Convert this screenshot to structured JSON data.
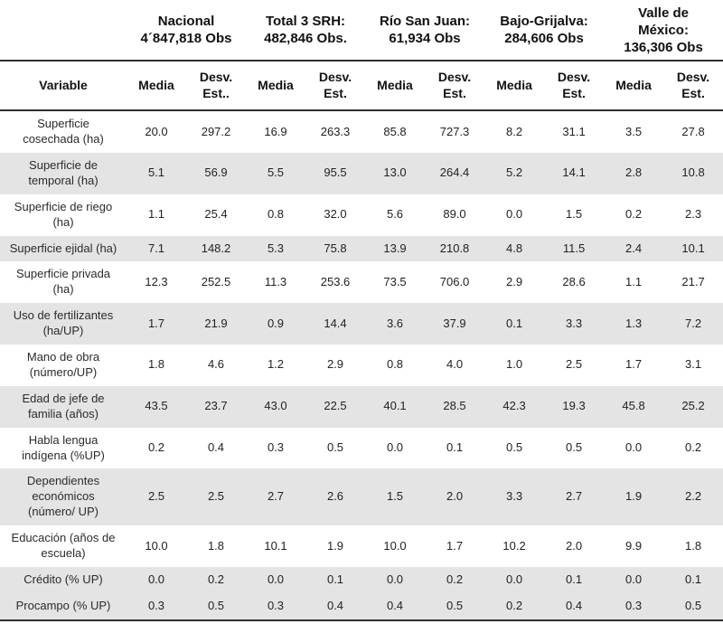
{
  "table": {
    "variable_header": "Variable",
    "groups": [
      {
        "name": "Nacional",
        "obs": "4´847,818 Obs",
        "media_label": "Media",
        "desv_label": "Desv. Est.."
      },
      {
        "name": "Total 3 SRH:",
        "obs": "482,846 Obs.",
        "media_label": "Media",
        "desv_label": "Desv. Est."
      },
      {
        "name": "Río San Juan:",
        "obs": "61,934 Obs",
        "media_label": "Media",
        "desv_label": "Desv. Est."
      },
      {
        "name": "Bajo-Grijalva:",
        "obs": "284,606 Obs",
        "media_label": "Media",
        "desv_label": "Desv. Est."
      },
      {
        "name": "Valle de México:",
        "obs": "136,306 Obs",
        "media_label": "Media",
        "desv_label": "Desv. Est."
      }
    ],
    "rows": [
      {
        "label": "Superficie cosechada (ha)",
        "shaded": false,
        "values": [
          "20.0",
          "297.2",
          "16.9",
          "263.3",
          "85.8",
          "727.3",
          "8.2",
          "31.1",
          "3.5",
          "27.8"
        ]
      },
      {
        "label": "Superficie de temporal (ha)",
        "shaded": true,
        "values": [
          "5.1",
          "56.9",
          "5.5",
          "95.5",
          "13.0",
          "264.4",
          "5.2",
          "14.1",
          "2.8",
          "10.8"
        ]
      },
      {
        "label": "Superficie de riego (ha)",
        "shaded": false,
        "values": [
          "1.1",
          "25.4",
          "0.8",
          "32.0",
          "5.6",
          "89.0",
          "0.0",
          "1.5",
          "0.2",
          "2.3"
        ]
      },
      {
        "label": "Superficie ejidal (ha)",
        "shaded": true,
        "values": [
          "7.1",
          "148.2",
          "5.3",
          "75.8",
          "13.9",
          "210.8",
          "4.8",
          "11.5",
          "2.4",
          "10.1"
        ]
      },
      {
        "label": "Superficie privada (ha)",
        "shaded": false,
        "values": [
          "12.3",
          "252.5",
          "11.3",
          "253.6",
          "73.5",
          "706.0",
          "2.9",
          "28.6",
          "1.1",
          "21.7"
        ]
      },
      {
        "label": "Uso de fertilizantes (ha/UP)",
        "shaded": true,
        "values": [
          "1.7",
          "21.9",
          "0.9",
          "14.4",
          "3.6",
          "37.9",
          "0.1",
          "3.3",
          "1.3",
          "7.2"
        ]
      },
      {
        "label": "Mano de obra (número/UP)",
        "shaded": false,
        "values": [
          "1.8",
          "4.6",
          "1.2",
          "2.9",
          "0.8",
          "4.0",
          "1.0",
          "2.5",
          "1.7",
          "3.1"
        ]
      },
      {
        "label": "Edad de jefe de familia (años)",
        "shaded": true,
        "values": [
          "43.5",
          "23.7",
          "43.0",
          "22.5",
          "40.1",
          "28.5",
          "42.3",
          "19.3",
          "45.8",
          "25.2"
        ]
      },
      {
        "label": "Habla lengua indígena (%UP)",
        "shaded": false,
        "values": [
          "0.2",
          "0.4",
          "0.3",
          "0.5",
          "0.0",
          "0.1",
          "0.5",
          "0.5",
          "0.0",
          "0.2"
        ]
      },
      {
        "label": "Dependientes económicos (número/ UP)",
        "shaded": true,
        "values": [
          "2.5",
          "2.5",
          "2.7",
          "2.6",
          "1.5",
          "2.0",
          "3.3",
          "2.7",
          "1.9",
          "2.2"
        ]
      },
      {
        "label": "Educación (años de escuela)",
        "shaded": false,
        "values": [
          "10.0",
          "1.8",
          "10.1",
          "1.9",
          "10.0",
          "1.7",
          "10.2",
          "2.0",
          "9.9",
          "1.8"
        ]
      },
      {
        "label": "Crédito (% UP)",
        "shaded": true,
        "values": [
          "0.0",
          "0.2",
          "0.0",
          "0.1",
          "0.0",
          "0.2",
          "0.0",
          "0.1",
          "0.0",
          "0.1"
        ]
      },
      {
        "label": "Procampo (% UP)",
        "shaded": true,
        "values": [
          "0.3",
          "0.5",
          "0.3",
          "0.4",
          "0.4",
          "0.5",
          "0.2",
          "0.4",
          "0.3",
          "0.5"
        ]
      }
    ]
  }
}
